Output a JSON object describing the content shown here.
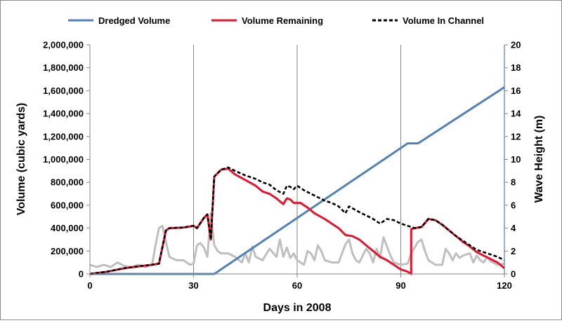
{
  "chart_data": {
    "type": "line",
    "xlabel": "Days in 2008",
    "ylabel": "Volume (cubic yards)",
    "y2label": "Wave Height (m)",
    "xlim": [
      0,
      120
    ],
    "ylim": [
      0,
      2000000
    ],
    "y2lim": [
      0,
      20
    ],
    "x_ticks": [
      0,
      30,
      60,
      90,
      120
    ],
    "y_ticks": [
      0,
      200000,
      400000,
      600000,
      800000,
      1000000,
      1200000,
      1400000,
      1600000,
      1800000,
      2000000
    ],
    "y_tick_labels": [
      "0",
      "200,000",
      "400,000",
      "600,000",
      "800,000",
      "1,000,000",
      "1,200,000",
      "1,400,000",
      "1,600,000",
      "1,800,000",
      "2,000,000"
    ],
    "y2_ticks": [
      0,
      2,
      4,
      6,
      8,
      10,
      12,
      14,
      16,
      18,
      20
    ],
    "grid": "vertical lines at x ticks",
    "legend_position": "top",
    "series": [
      {
        "name": "Dredged Volume",
        "axis": "left",
        "color": "#4f81bd",
        "style": "solid",
        "points": [
          [
            0,
            0
          ],
          [
            36,
            0
          ],
          [
            92,
            1140000
          ],
          [
            95,
            1140000
          ],
          [
            120,
            1630000
          ]
        ]
      },
      {
        "name": "Volume Remaining",
        "axis": "left",
        "color": "#e8132d",
        "style": "solid",
        "points": [
          [
            0,
            0
          ],
          [
            5,
            20000
          ],
          [
            10,
            50000
          ],
          [
            15,
            70000
          ],
          [
            18,
            80000
          ],
          [
            20,
            90000
          ],
          [
            22,
            380000
          ],
          [
            23,
            400000
          ],
          [
            27,
            405000
          ],
          [
            30,
            420000
          ],
          [
            31,
            400000
          ],
          [
            33,
            490000
          ],
          [
            34,
            520000
          ],
          [
            35,
            300000
          ],
          [
            36,
            850000
          ],
          [
            38,
            910000
          ],
          [
            40,
            920000
          ],
          [
            42,
            870000
          ],
          [
            45,
            820000
          ],
          [
            48,
            770000
          ],
          [
            50,
            720000
          ],
          [
            52,
            700000
          ],
          [
            54,
            660000
          ],
          [
            56,
            610000
          ],
          [
            57,
            660000
          ],
          [
            58,
            650000
          ],
          [
            59,
            620000
          ],
          [
            61,
            620000
          ],
          [
            63,
            580000
          ],
          [
            65,
            530000
          ],
          [
            68,
            480000
          ],
          [
            70,
            440000
          ],
          [
            72,
            400000
          ],
          [
            74,
            340000
          ],
          [
            76,
            330000
          ],
          [
            78,
            300000
          ],
          [
            80,
            250000
          ],
          [
            82,
            200000
          ],
          [
            84,
            150000
          ],
          [
            86,
            120000
          ],
          [
            88,
            80000
          ],
          [
            90,
            40000
          ],
          [
            92,
            20000
          ],
          [
            93,
            0
          ],
          [
            93,
            390000
          ],
          [
            94,
            400000
          ],
          [
            96,
            410000
          ],
          [
            98,
            480000
          ],
          [
            100,
            470000
          ],
          [
            102,
            430000
          ],
          [
            104,
            380000
          ],
          [
            106,
            330000
          ],
          [
            108,
            280000
          ],
          [
            110,
            240000
          ],
          [
            112,
            190000
          ],
          [
            114,
            160000
          ],
          [
            116,
            130000
          ],
          [
            118,
            100000
          ],
          [
            120,
            50000
          ]
        ]
      },
      {
        "name": "Volume In Channel",
        "axis": "left",
        "color": "#000000",
        "style": "dashed",
        "points": [
          [
            0,
            0
          ],
          [
            5,
            20000
          ],
          [
            10,
            50000
          ],
          [
            15,
            70000
          ],
          [
            18,
            80000
          ],
          [
            20,
            90000
          ],
          [
            22,
            380000
          ],
          [
            23,
            400000
          ],
          [
            27,
            405000
          ],
          [
            30,
            420000
          ],
          [
            31,
            400000
          ],
          [
            33,
            490000
          ],
          [
            34,
            520000
          ],
          [
            35,
            300000
          ],
          [
            36,
            850000
          ],
          [
            38,
            910000
          ],
          [
            40,
            930000
          ],
          [
            42,
            900000
          ],
          [
            45,
            860000
          ],
          [
            48,
            830000
          ],
          [
            50,
            800000
          ],
          [
            52,
            780000
          ],
          [
            54,
            730000
          ],
          [
            56,
            700000
          ],
          [
            57,
            770000
          ],
          [
            58,
            760000
          ],
          [
            59,
            740000
          ],
          [
            60,
            770000
          ],
          [
            62,
            730000
          ],
          [
            64,
            700000
          ],
          [
            66,
            670000
          ],
          [
            68,
            640000
          ],
          [
            70,
            620000
          ],
          [
            72,
            590000
          ],
          [
            74,
            530000
          ],
          [
            75,
            590000
          ],
          [
            78,
            540000
          ],
          [
            80,
            510000
          ],
          [
            82,
            480000
          ],
          [
            84,
            440000
          ],
          [
            86,
            480000
          ],
          [
            88,
            470000
          ],
          [
            90,
            440000
          ],
          [
            92,
            420000
          ],
          [
            94,
            400000
          ],
          [
            96,
            410000
          ],
          [
            98,
            480000
          ],
          [
            100,
            470000
          ],
          [
            102,
            430000
          ],
          [
            104,
            380000
          ],
          [
            106,
            330000
          ],
          [
            108,
            290000
          ],
          [
            110,
            250000
          ],
          [
            112,
            210000
          ],
          [
            114,
            190000
          ],
          [
            116,
            170000
          ],
          [
            118,
            150000
          ],
          [
            120,
            120000
          ]
        ]
      },
      {
        "name": "",
        "axis": "right",
        "color": "#bfbfbf",
        "style": "solid",
        "points": [
          [
            0,
            0.8
          ],
          [
            2,
            0.6
          ],
          [
            4,
            0.8
          ],
          [
            6,
            0.6
          ],
          [
            8,
            1
          ],
          [
            10,
            0.7
          ],
          [
            12,
            0.6
          ],
          [
            14,
            0.8
          ],
          [
            16,
            0.6
          ],
          [
            18,
            0.8
          ],
          [
            19,
            2.5
          ],
          [
            20,
            4
          ],
          [
            21,
            4.2
          ],
          [
            22,
            2.8
          ],
          [
            23,
            1.5
          ],
          [
            25,
            1.2
          ],
          [
            27,
            1.2
          ],
          [
            29,
            0.8
          ],
          [
            30,
            0.9
          ],
          [
            31,
            2.5
          ],
          [
            32,
            2.7
          ],
          [
            33,
            2.3
          ],
          [
            34,
            1.5
          ],
          [
            35,
            5.3
          ],
          [
            36,
            2.5
          ],
          [
            37,
            2
          ],
          [
            38,
            1.8
          ],
          [
            40,
            1.8
          ],
          [
            42,
            1.5
          ],
          [
            44,
            1
          ],
          [
            45,
            1.8
          ],
          [
            46,
            1
          ],
          [
            47,
            2.4
          ],
          [
            48,
            1.5
          ],
          [
            50,
            1.2
          ],
          [
            52,
            2.2
          ],
          [
            54,
            1.5
          ],
          [
            55,
            3
          ],
          [
            56,
            1.5
          ],
          [
            57,
            2.3
          ],
          [
            58,
            1.4
          ],
          [
            59,
            1.8
          ],
          [
            60,
            1.2
          ],
          [
            62,
            0.8
          ],
          [
            63,
            2
          ],
          [
            64,
            1.8
          ],
          [
            65,
            1.2
          ],
          [
            66,
            2.5
          ],
          [
            67,
            2
          ],
          [
            68,
            1.2
          ],
          [
            70,
            1
          ],
          [
            72,
            1
          ],
          [
            74,
            2.6
          ],
          [
            75,
            3
          ],
          [
            76,
            1.8
          ],
          [
            77,
            1.2
          ],
          [
            78,
            1
          ],
          [
            80,
            2.2
          ],
          [
            81,
            1.8
          ],
          [
            82,
            1
          ],
          [
            83,
            2.2
          ],
          [
            84,
            1.4
          ],
          [
            85,
            3.2
          ],
          [
            86,
            2.4
          ],
          [
            87,
            1.6
          ],
          [
            88,
            1
          ],
          [
            90,
            0.8
          ],
          [
            92,
            0.9
          ],
          [
            93,
            1.8
          ],
          [
            95,
            2.8
          ],
          [
            96,
            3
          ],
          [
            97,
            2
          ],
          [
            98,
            1.2
          ],
          [
            100,
            0.8
          ],
          [
            102,
            0.8
          ],
          [
            103,
            2.2
          ],
          [
            104,
            1.8
          ],
          [
            105,
            1.2
          ],
          [
            106,
            1.8
          ],
          [
            107,
            1.4
          ],
          [
            108,
            1.6
          ],
          [
            110,
            1.8
          ],
          [
            111,
            1
          ],
          [
            112,
            1.6
          ],
          [
            113,
            1.2
          ],
          [
            114,
            1
          ],
          [
            115,
            1.5
          ],
          [
            116,
            1.1
          ],
          [
            118,
            0.8
          ],
          [
            120,
            0.9
          ]
        ]
      }
    ]
  }
}
